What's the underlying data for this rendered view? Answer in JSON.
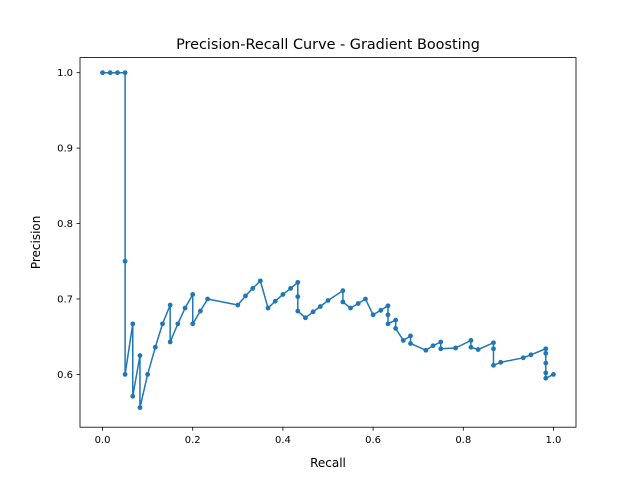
{
  "chart_data": {
    "type": "line",
    "title": "Precision-Recall Curve - Gradient Boosting",
    "xlabel": "Recall",
    "ylabel": "Precision",
    "xlim": [
      -0.05,
      1.05
    ],
    "ylim": [
      0.53,
      1.02
    ],
    "grid": false,
    "xticks": [
      "0.0",
      "0.2",
      "0.4",
      "0.6",
      "0.8",
      "1.0"
    ],
    "yticks": [
      "0.6",
      "0.7",
      "0.8",
      "0.9",
      "1.0"
    ],
    "series": [
      {
        "color": "#1f77b4",
        "marker": "o",
        "points": [
          [
            0.0,
            1.0
          ],
          [
            0.017,
            1.0
          ],
          [
            0.033,
            1.0
          ],
          [
            0.05,
            1.0
          ],
          [
            0.05,
            0.75
          ],
          [
            0.05,
            0.6
          ],
          [
            0.067,
            0.667
          ],
          [
            0.067,
            0.571
          ],
          [
            0.083,
            0.625
          ],
          [
            0.083,
            0.556
          ],
          [
            0.1,
            0.6
          ],
          [
            0.117,
            0.636
          ],
          [
            0.133,
            0.667
          ],
          [
            0.15,
            0.692
          ],
          [
            0.15,
            0.643
          ],
          [
            0.167,
            0.667
          ],
          [
            0.183,
            0.688
          ],
          [
            0.2,
            0.706
          ],
          [
            0.2,
            0.667
          ],
          [
            0.217,
            0.684
          ],
          [
            0.233,
            0.7
          ],
          [
            0.3,
            0.692
          ],
          [
            0.317,
            0.704
          ],
          [
            0.333,
            0.714
          ],
          [
            0.35,
            0.724
          ],
          [
            0.367,
            0.688
          ],
          [
            0.383,
            0.697
          ],
          [
            0.4,
            0.706
          ],
          [
            0.417,
            0.714
          ],
          [
            0.433,
            0.722
          ],
          [
            0.433,
            0.703
          ],
          [
            0.433,
            0.684
          ],
          [
            0.45,
            0.675
          ],
          [
            0.467,
            0.683
          ],
          [
            0.483,
            0.69
          ],
          [
            0.5,
            0.698
          ],
          [
            0.533,
            0.711
          ],
          [
            0.533,
            0.696
          ],
          [
            0.55,
            0.688
          ],
          [
            0.567,
            0.694
          ],
          [
            0.583,
            0.7
          ],
          [
            0.6,
            0.679
          ],
          [
            0.617,
            0.685
          ],
          [
            0.633,
            0.691
          ],
          [
            0.633,
            0.679
          ],
          [
            0.633,
            0.667
          ],
          [
            0.65,
            0.672
          ],
          [
            0.65,
            0.661
          ],
          [
            0.667,
            0.645
          ],
          [
            0.683,
            0.651
          ],
          [
            0.683,
            0.641
          ],
          [
            0.717,
            0.632
          ],
          [
            0.733,
            0.638
          ],
          [
            0.75,
            0.643
          ],
          [
            0.75,
            0.634
          ],
          [
            0.783,
            0.635
          ],
          [
            0.817,
            0.645
          ],
          [
            0.817,
            0.636
          ],
          [
            0.833,
            0.633
          ],
          [
            0.867,
            0.642
          ],
          [
            0.867,
            0.634
          ],
          [
            0.867,
            0.612
          ],
          [
            0.883,
            0.616
          ],
          [
            0.933,
            0.622
          ],
          [
            0.95,
            0.626
          ],
          [
            0.983,
            0.634
          ],
          [
            0.983,
            0.628
          ],
          [
            0.983,
            0.615
          ],
          [
            0.983,
            0.602
          ],
          [
            0.983,
            0.595
          ],
          [
            1.0,
            0.6
          ]
        ]
      }
    ]
  }
}
